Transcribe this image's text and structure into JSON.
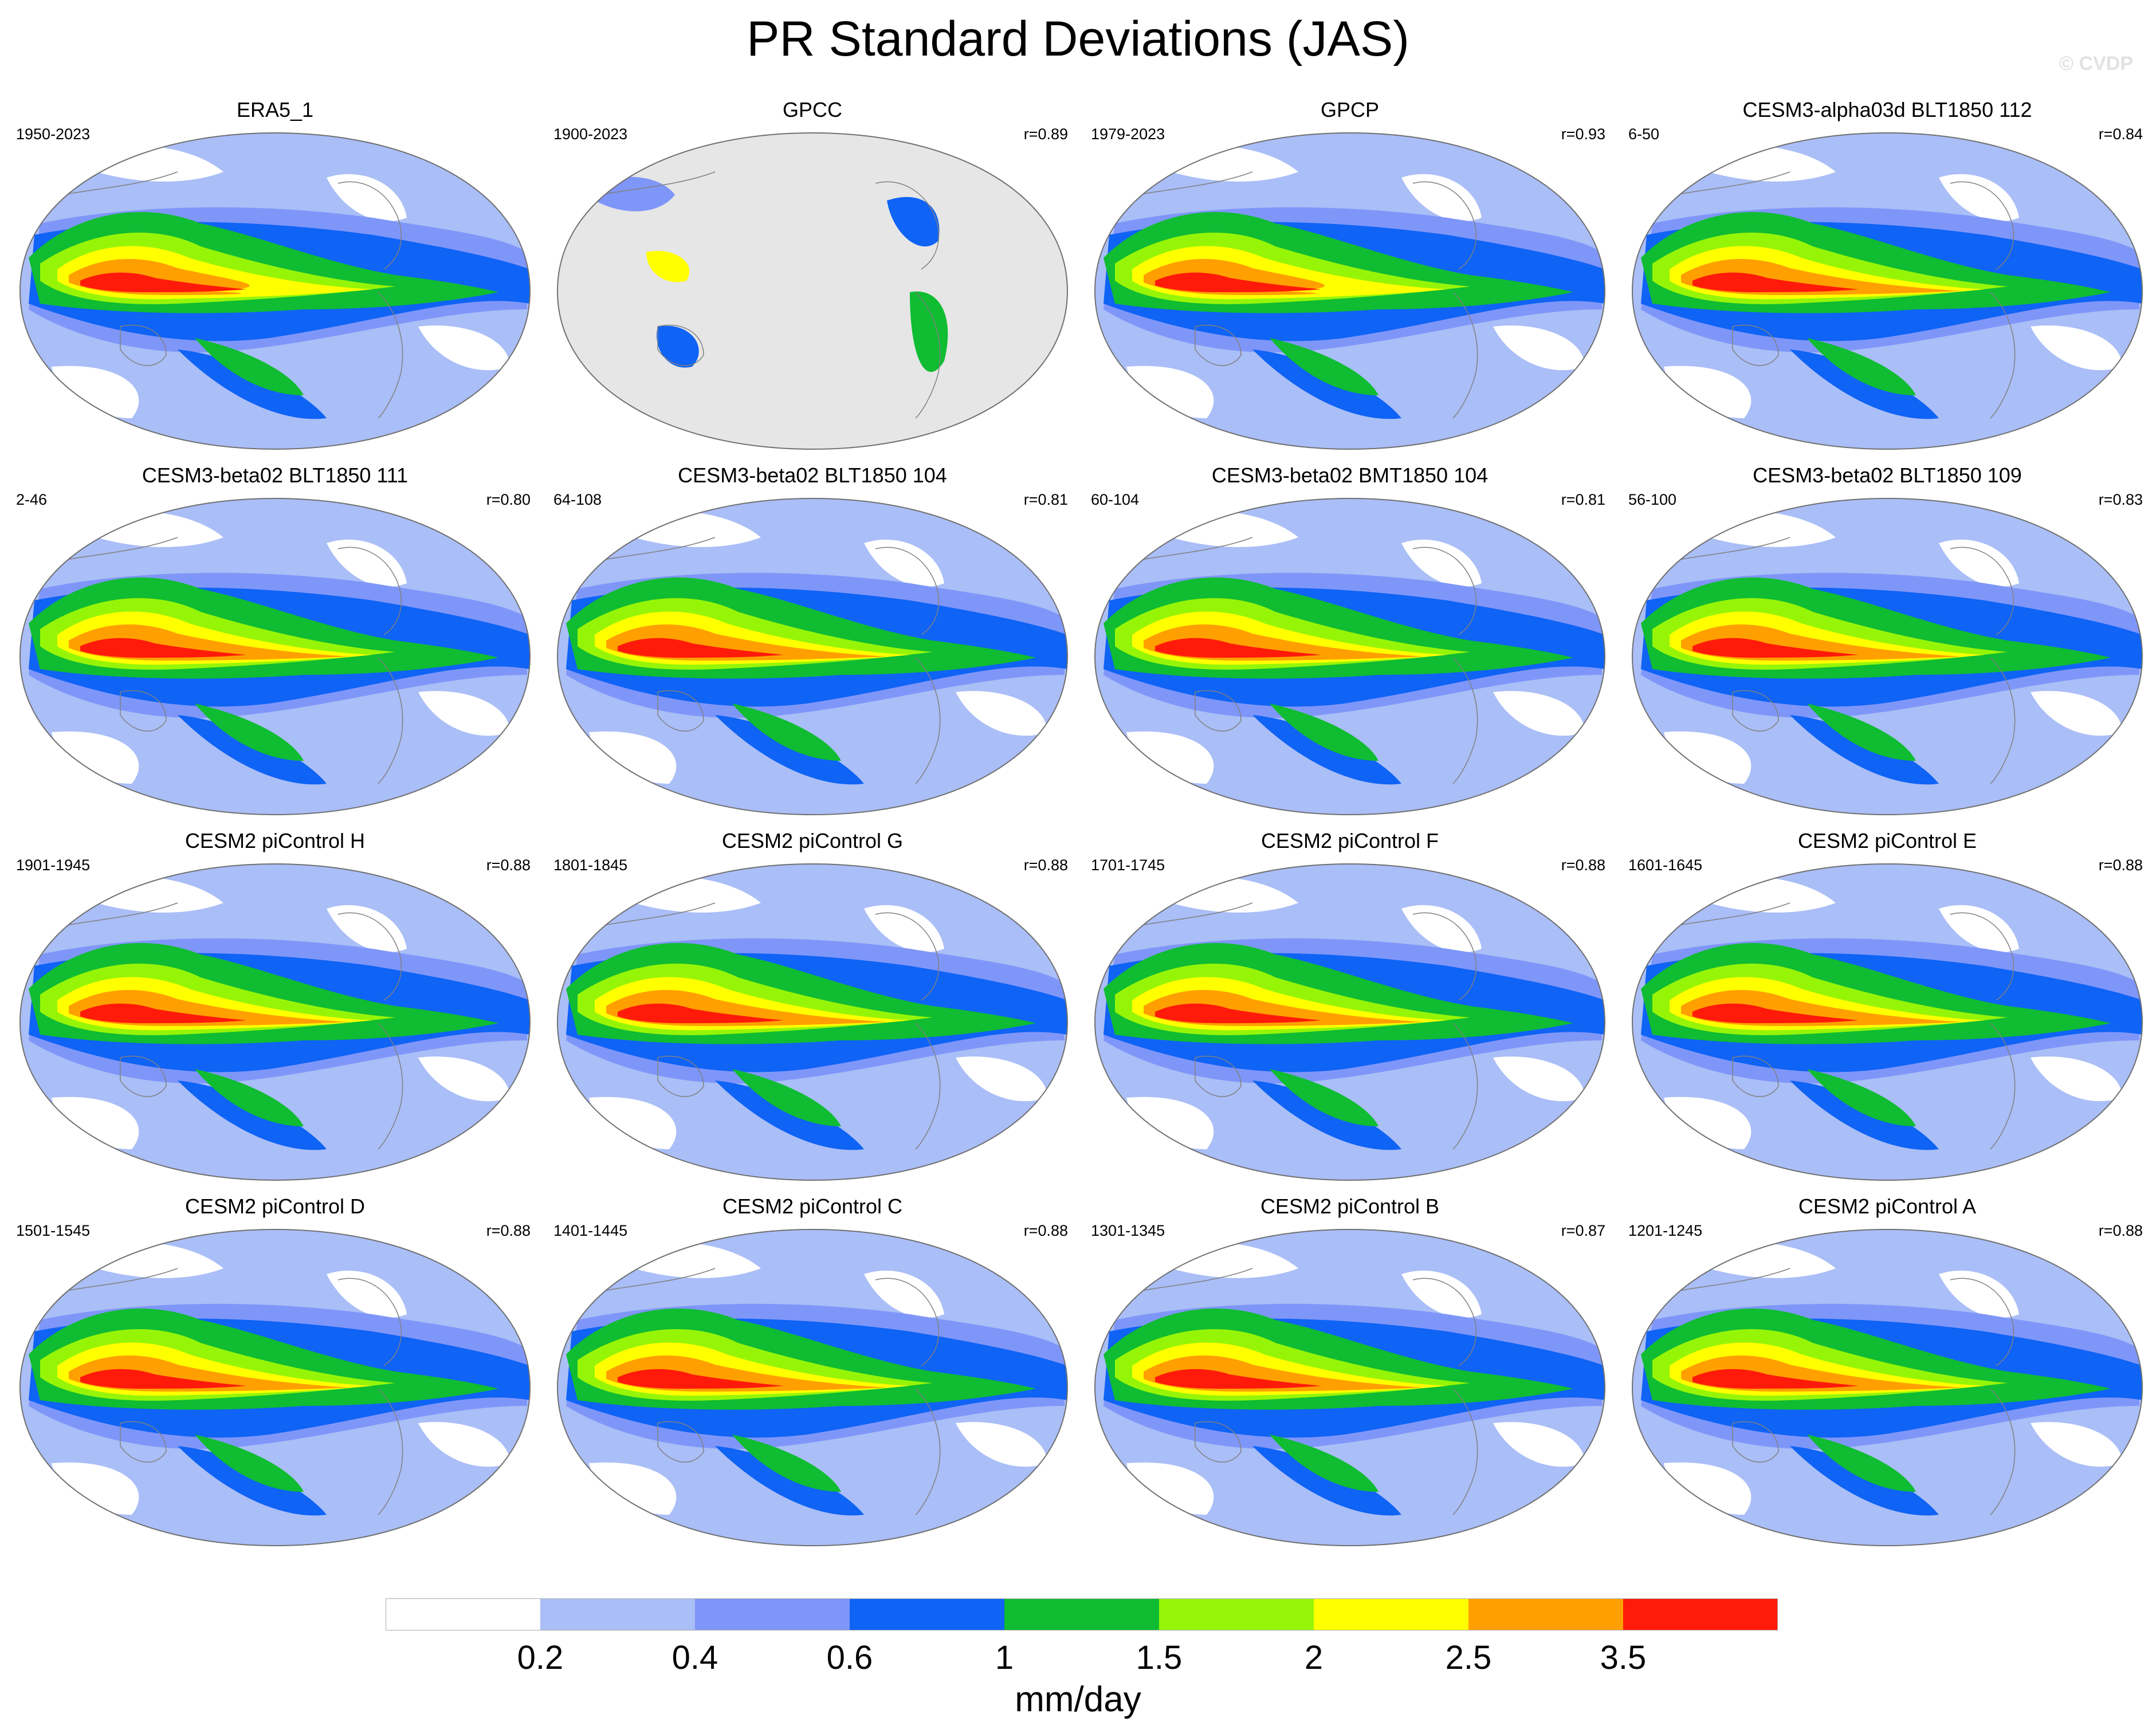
{
  "title": "PR Standard Deviations (JAS)",
  "watermark": "© CVDP",
  "map_type": "Robinson projection, Pacific-centered global contour maps",
  "units": "mm/day",
  "colorbar": {
    "labels": [
      "0.2",
      "0.4",
      "0.6",
      "1",
      "1.5",
      "2",
      "2.5",
      "3.5"
    ],
    "colors": [
      "#ffffff",
      "#aabef7",
      "#7f96f9",
      "#0f63f5",
      "#0fbc32",
      "#96f507",
      "#ffff00",
      "#ffa000",
      "#ff1a0a"
    ]
  },
  "colors": {
    "gpcc_background": "#e6e6e6",
    "coastline": "#808080",
    "map_border": "#707070"
  },
  "panels": [
    {
      "title": "ERA5_1",
      "years": "1950-2023",
      "corr": "",
      "variant": "obs"
    },
    {
      "title": "GPCC",
      "years": "1900-2023",
      "corr": "r=0.89",
      "variant": "gpcc"
    },
    {
      "title": "GPCP",
      "years": "1979-2023",
      "corr": "r=0.93",
      "variant": "obs"
    },
    {
      "title": "CESM3-alpha03d BLT1850 112",
      "years": "6-50",
      "corr": "r=0.84",
      "variant": "model"
    },
    {
      "title": "CESM3-beta02 BLT1850 111",
      "years": "2-46",
      "corr": "r=0.80",
      "variant": "model"
    },
    {
      "title": "CESM3-beta02 BLT1850 104",
      "years": "64-108",
      "corr": "r=0.81",
      "variant": "model"
    },
    {
      "title": "CESM3-beta02 BMT1850 104",
      "years": "60-104",
      "corr": "r=0.81",
      "variant": "model"
    },
    {
      "title": "CESM3-beta02 BLT1850 109",
      "years": "56-100",
      "corr": "r=0.83",
      "variant": "model"
    },
    {
      "title": "CESM2 piControl H",
      "years": "1901-1945",
      "corr": "r=0.88",
      "variant": "model"
    },
    {
      "title": "CESM2 piControl G",
      "years": "1801-1845",
      "corr": "r=0.88",
      "variant": "model"
    },
    {
      "title": "CESM2 piControl F",
      "years": "1701-1745",
      "corr": "r=0.88",
      "variant": "model"
    },
    {
      "title": "CESM2 piControl E",
      "years": "1601-1645",
      "corr": "r=0.88",
      "variant": "model"
    },
    {
      "title": "CESM2 piControl D",
      "years": "1501-1545",
      "corr": "r=0.88",
      "variant": "model"
    },
    {
      "title": "CESM2 piControl C",
      "years": "1401-1445",
      "corr": "r=0.88",
      "variant": "model"
    },
    {
      "title": "CESM2 piControl B",
      "years": "1301-1345",
      "corr": "r=0.87",
      "variant": "model"
    },
    {
      "title": "CESM2 piControl A",
      "years": "1201-1245",
      "corr": "r=0.88",
      "variant": "model"
    }
  ]
}
